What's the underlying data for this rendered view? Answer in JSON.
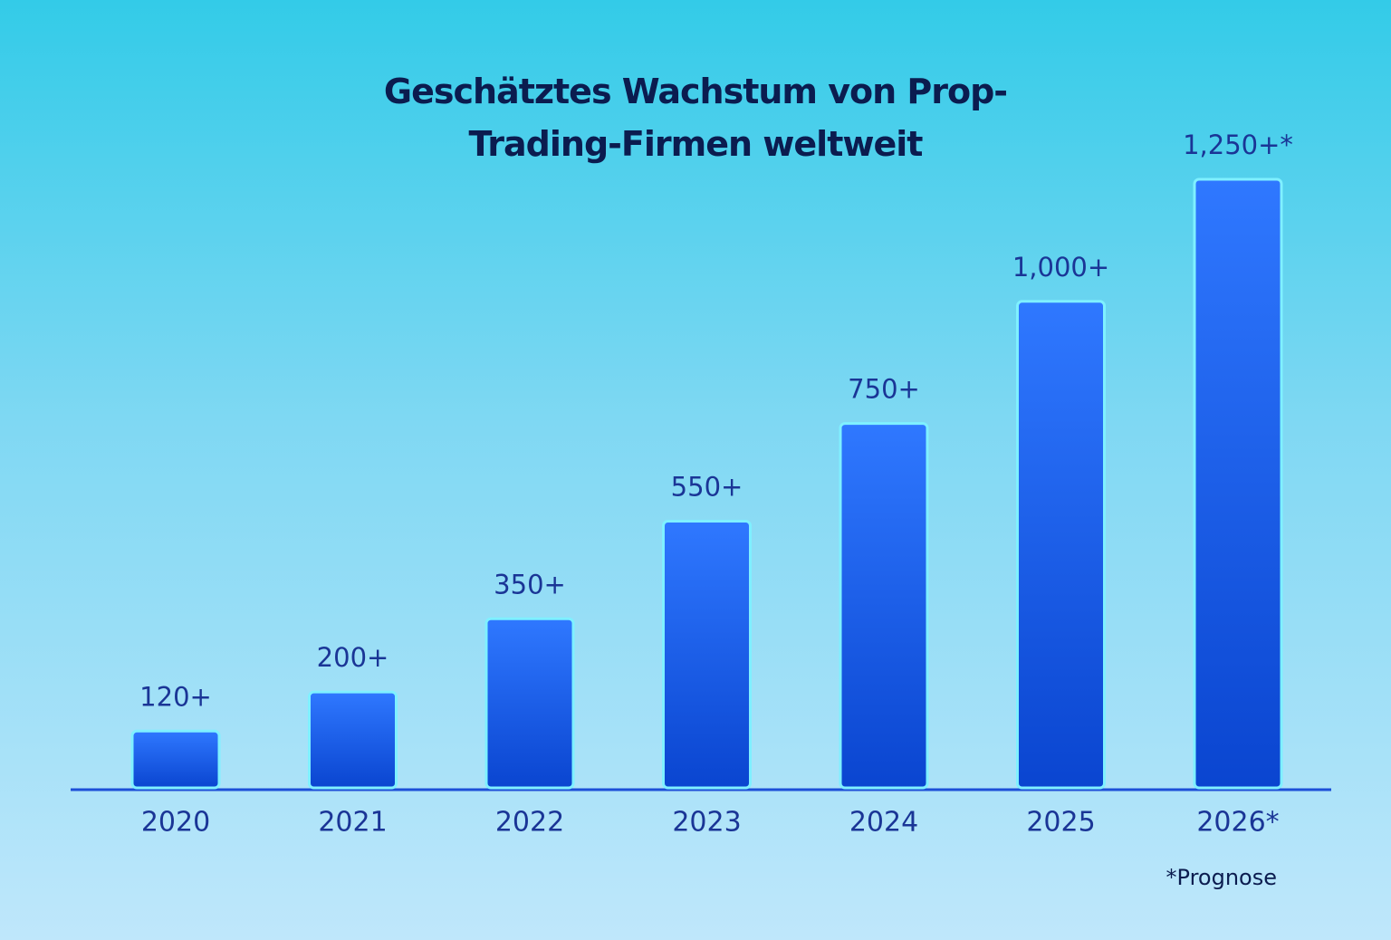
{
  "chart_data": {
    "type": "bar",
    "title": "Geschätztes Wachstum von Prop-Trading-Firmen weltweit",
    "categories": [
      "2020",
      "2021",
      "2022",
      "2023",
      "2024",
      "2025",
      "2026*"
    ],
    "values": [
      120,
      200,
      350,
      550,
      750,
      1000,
      1250
    ],
    "value_labels": [
      "120+",
      "200+",
      "350+",
      "550+",
      "750+",
      "1,000+",
      "1,250+*"
    ],
    "color": "#1f5ff0",
    "note": "*Prognose"
  }
}
